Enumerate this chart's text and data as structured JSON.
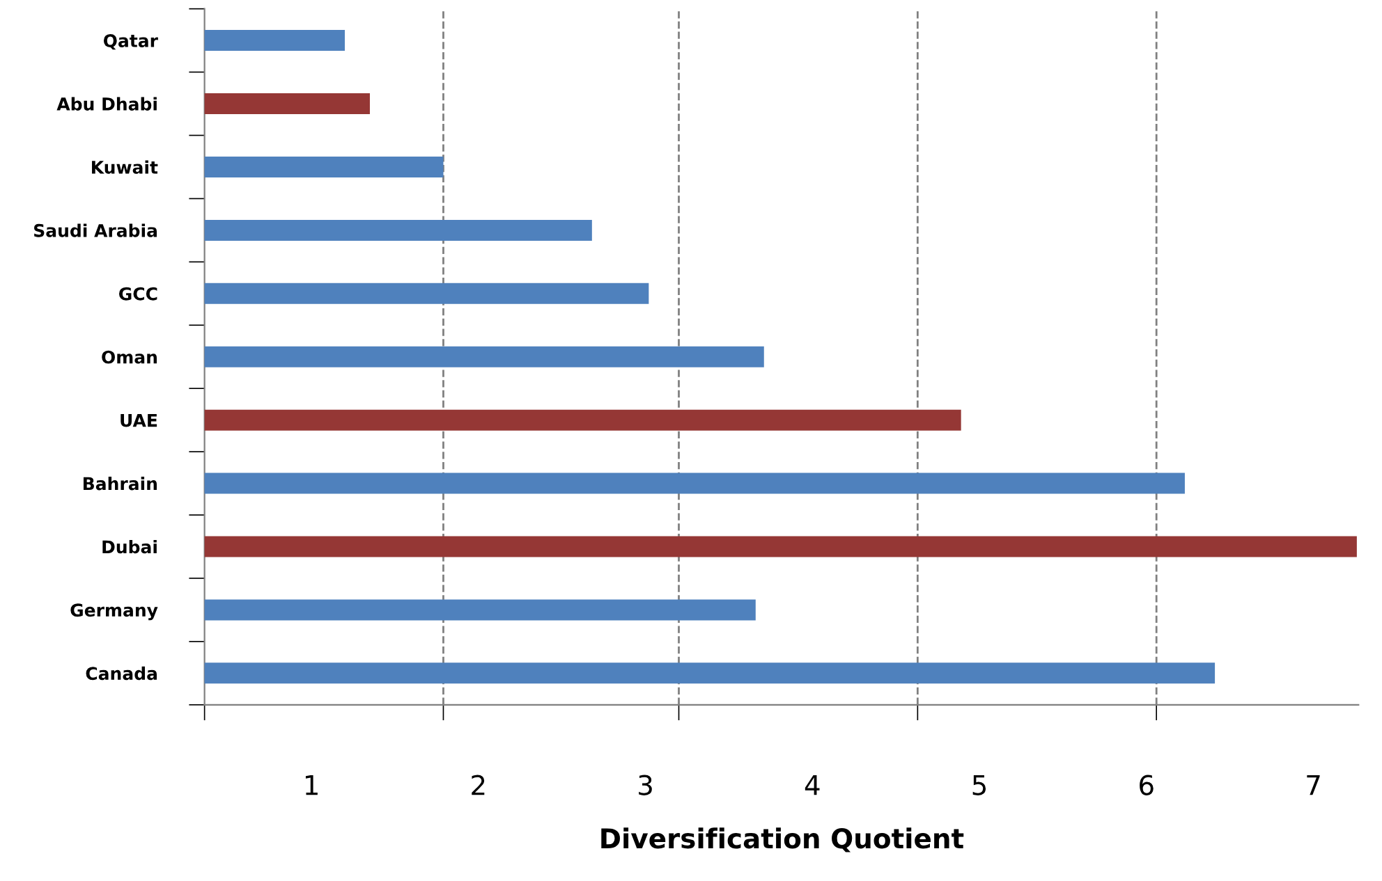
{
  "chart_data": {
    "type": "bar",
    "orientation": "horizontal",
    "xlabel": "Diversification Quotient",
    "categories": [
      "Qatar",
      "Abu Dhabi",
      "Kuwait",
      "Saudi Arabia",
      "GCC",
      "Oman",
      "UAE",
      "Bahrain",
      "Dubai",
      "Germany",
      "Canada"
    ],
    "values": [
      1.2,
      1.35,
      1.79,
      2.68,
      3.02,
      3.71,
      4.89,
      6.23,
      7.26,
      3.66,
      6.41
    ],
    "colors": [
      "#4f81bd",
      "#953735",
      "#4f81bd",
      "#4f81bd",
      "#4f81bd",
      "#4f81bd",
      "#953735",
      "#4f81bd",
      "#953735",
      "#4f81bd",
      "#4f81bd"
    ],
    "xlim": [
      0.36,
      7.27
    ],
    "xticks": [
      1,
      2,
      3,
      4,
      5,
      6,
      7
    ],
    "ref_lines": [
      {
        "axis": "x",
        "value": 1.79,
        "label": null,
        "color": "#808080",
        "line_style": "dashed"
      },
      {
        "axis": "x",
        "value": 3.2,
        "label": null,
        "color": "#808080",
        "line_style": "dashed"
      },
      {
        "axis": "x",
        "value": 4.63,
        "label": null,
        "color": "#808080",
        "line_style": "dashed"
      },
      {
        "axis": "x",
        "value": 6.06,
        "label": null,
        "color": "#808080",
        "line_style": "dashed"
      }
    ],
    "legend": false,
    "grid": false
  }
}
